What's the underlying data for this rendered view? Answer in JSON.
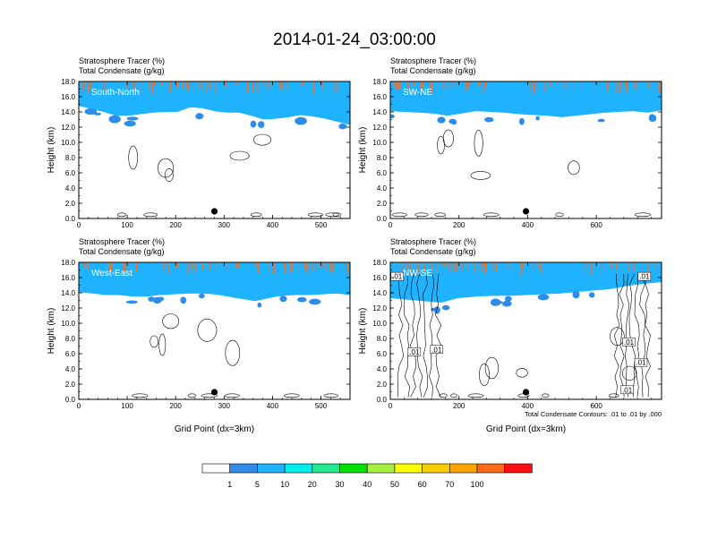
{
  "title": "2014-01-24_03:00:00",
  "colorbar": {
    "labels": [
      "1",
      "5",
      "10",
      "20",
      "30",
      "40",
      "50",
      "60",
      "70",
      "100"
    ],
    "colors": [
      "#ffffff",
      "#2e8be8",
      "#1fb2ff",
      "#00eeee",
      "#22e88f",
      "#00e000",
      "#a6f03c",
      "#ffff00",
      "#f6cd00",
      "#fea500",
      "#ff6a1a",
      "#ff1010"
    ]
  },
  "chart_data": [
    {
      "type": "heatmap",
      "panel_title": "South-North",
      "fields": [
        "Stratosphere Tracer   (%)",
        "Total Condensate   (g/kg)"
      ],
      "xlabel": "",
      "ylabel": "Height (km)",
      "xlim": [
        0,
        560
      ],
      "ylim": [
        0,
        18
      ],
      "xticks": [
        "0",
        "100",
        "200",
        "300",
        "400",
        "500"
      ],
      "yticks": [
        "0.0",
        "2.0",
        "4.0",
        "6.0",
        "8.0",
        "10.0",
        "12.0",
        "14.0",
        "16.0",
        "18.0"
      ],
      "tropopause_km": [
        15.5,
        15.1,
        14.7,
        14.2,
        14.2,
        14.4,
        14.6,
        14.7,
        14.7,
        15.3,
        15.2,
        14.8,
        14.6,
        14.6,
        14.2,
        13.7,
        13.8,
        14.0,
        14.3,
        14.1,
        13.8,
        13.4,
        13.0
      ],
      "marker_x": 280,
      "note": ""
    },
    {
      "type": "heatmap",
      "panel_title": "SW-NE",
      "fields": [
        "Stratosphere Tracer   (%)",
        "Total Condensate   (g/kg)"
      ],
      "xlabel": "",
      "ylabel": "Height (km)",
      "xlim": [
        0,
        790
      ],
      "ylim": [
        0,
        18
      ],
      "xticks": [
        "0",
        "200",
        "400",
        "600"
      ],
      "yticks": [
        "0.0",
        "2.0",
        "4.0",
        "6.0",
        "8.0",
        "10.0",
        "12.0",
        "14.0",
        "16.0",
        "18.0"
      ],
      "tropopause_km": [
        14.8,
        14.7,
        14.6,
        14.5,
        14.2,
        14.5,
        14.8,
        14.7,
        14.6,
        14.4,
        14.3,
        14.2,
        14.0,
        14.2,
        14.4,
        14.6,
        14.7,
        14.8,
        14.6,
        14.9
      ],
      "marker_x": 395,
      "note": ""
    },
    {
      "type": "heatmap",
      "panel_title": "West-East",
      "fields": [
        "Stratosphere Tracer   (%)",
        "Total Condensate   (g/kg)"
      ],
      "xlabel": "Grid Point (dx=3km)",
      "ylabel": "Height (km)",
      "xlim": [
        0,
        560
      ],
      "ylim": [
        0,
        18
      ],
      "xticks": [
        "0",
        "100",
        "200",
        "300",
        "400",
        "500"
      ],
      "yticks": [
        "0.0",
        "2.0",
        "4.0",
        "6.0",
        "8.0",
        "10.0",
        "12.0",
        "14.0",
        "16.0",
        "18.0"
      ],
      "tropopause_km": [
        14.8,
        14.6,
        14.4,
        14.4,
        14.2,
        14.2,
        14.4,
        14.5,
        14.6,
        14.6,
        14.5,
        14.2,
        13.9,
        13.6,
        14.0,
        14.3,
        14.4,
        14.4,
        14.5,
        14.6,
        14.4
      ],
      "marker_x": 280,
      "note": ""
    },
    {
      "type": "heatmap",
      "panel_title": "NW-SE",
      "fields": [
        "Stratosphere Tracer   (%)",
        "Total Condensate   (g/kg)"
      ],
      "xlabel": "Grid Point (dx=3km)",
      "ylabel": "Height (km)",
      "xlim": [
        0,
        790
      ],
      "ylim": [
        0,
        18
      ],
      "xticks": [
        "0",
        "200",
        "400",
        "600"
      ],
      "yticks": [
        "0.0",
        "2.0",
        "4.0",
        "6.0",
        "8.0",
        "10.0",
        "12.0",
        "14.0",
        "16.0",
        "18.0"
      ],
      "tropopause_km": [
        14.0,
        13.8,
        13.6,
        13.4,
        14.0,
        14.2,
        14.3,
        14.3,
        14.4,
        14.5,
        14.6,
        14.8,
        15.0,
        15.2,
        15.6,
        15.9,
        16.1
      ],
      "marker_x": 395,
      "note": "Total Condensate Contours: .01 to .01 by .000",
      "contour_labels": [
        {
          "text": ".01",
          "x": 20,
          "y": 16.1
        },
        {
          "text": ".01",
          "x": 70,
          "y": 6.2
        },
        {
          "text": ".01",
          "x": 135,
          "y": 6.5
        },
        {
          "text": ".01",
          "x": 695,
          "y": 7.5
        },
        {
          "text": ".01",
          "x": 730,
          "y": 4.8
        },
        {
          "text": ".01",
          "x": 690,
          "y": 1.2
        },
        {
          "text": ".01",
          "x": 740,
          "y": 16.1
        }
      ]
    }
  ]
}
